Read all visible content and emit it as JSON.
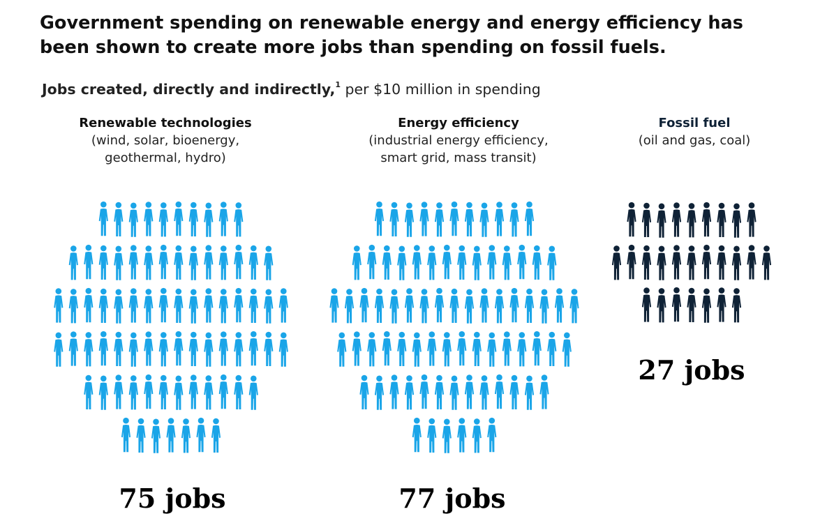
{
  "headline": "Government spending on renewable energy and energy efficiency has been shown to create more jobs than spending on fossil fuels.",
  "subtitle": {
    "bold": "Jobs created, directly and indirectly,",
    "superscript": "1",
    "rest": " per $10 million in spending"
  },
  "colors": {
    "clean": "#1aa5e8",
    "fossil": "#0f2236",
    "text": "#111111"
  },
  "icon": "person-silhouette-icon",
  "chart_data": {
    "type": "pictograph",
    "title": "Jobs created, directly and indirectly, per $10 million in spending",
    "categories": [
      {
        "name": "Renewable technologies",
        "detail": [
          "(wind, solar, bioenergy,",
          "geothermal, hydro)"
        ],
        "value": 75,
        "label": "75 jobs",
        "color": "#1aa5e8"
      },
      {
        "name": "Energy efficiency",
        "detail": [
          "(industrial energy efficiency,",
          "smart grid, mass transit)"
        ],
        "value": 77,
        "label": "77 jobs",
        "color": "#1aa5e8"
      },
      {
        "name": "Fossil fuel",
        "detail": [
          "(oil and gas, coal)"
        ],
        "value": 27,
        "label": "27 jobs",
        "color": "#0f2236"
      }
    ]
  }
}
